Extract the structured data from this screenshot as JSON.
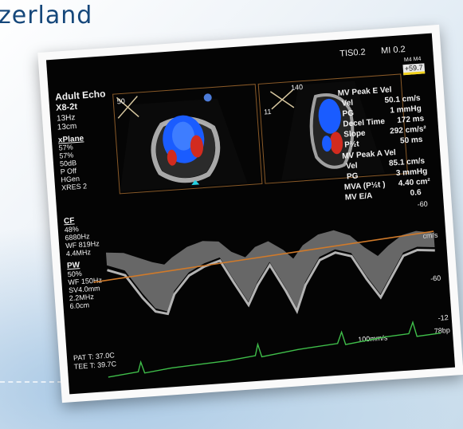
{
  "background": {
    "heading": "zerland"
  },
  "screen": {
    "top_right": {
      "tis": "TIS0.2",
      "mi": "MI 0.2",
      "badge_top": "M4 M4",
      "badge_value": "+59.7"
    },
    "left": {
      "mode": "Adult Echo",
      "probe": "X8-2t",
      "frame_rate": "13Hz",
      "depth": "13cm",
      "xplane_title": "xPlane",
      "xplane": [
        "57%",
        "57%",
        "50dB",
        "P Off",
        "HGen",
        "XRES 2"
      ],
      "cf_title": "CF",
      "cf": [
        "48%",
        "6880Hz",
        "WF 819Hz",
        "4.4MHz"
      ],
      "pw_title": "PW",
      "pw": [
        "50%",
        "WF 150Hz",
        "SV4.0mm",
        "2.2MHz",
        "6.0cm"
      ],
      "pat_t": "PAT T: 37.0C",
      "tee_t": "TEE T: 39.7C"
    },
    "panel_left": {
      "angle": "50"
    },
    "panel_right": {
      "angle_top": "140",
      "angle_side": "11"
    },
    "measurements": [
      {
        "label": "MV Peak E Vel",
        "value": ""
      },
      {
        "label": "Vel",
        "value": "50.1 cm/s"
      },
      {
        "label": "PG",
        "value": "1 mmHg"
      },
      {
        "label": "Decel Time",
        "value": "172 ms"
      },
      {
        "label": "Slope",
        "value": "292 cm/s²"
      },
      {
        "label": "P½t",
        "value": "50 ms"
      },
      {
        "label": "MV Peak A Vel",
        "value": ""
      },
      {
        "label": "Vel",
        "value": "85.1 cm/s"
      },
      {
        "label": "PG",
        "value": "3 mmHg"
      },
      {
        "label": "MVA (P½t )",
        "value": "4.40 cm²"
      },
      {
        "label": "MV E/A",
        "value": "0.6"
      }
    ],
    "scale": {
      "minus60_top": "-60",
      "units": "cm/s",
      "minus60": "-60",
      "minus120": "-12",
      "sweep": "100mm/s",
      "hr": "78bp"
    },
    "colors": {
      "panel_border": "#8a5a28",
      "baseline": "#d07a2a",
      "ecg": "#3fbf4a",
      "doppler_blue": "#1a5cff",
      "doppler_red": "#d22b1f"
    }
  }
}
